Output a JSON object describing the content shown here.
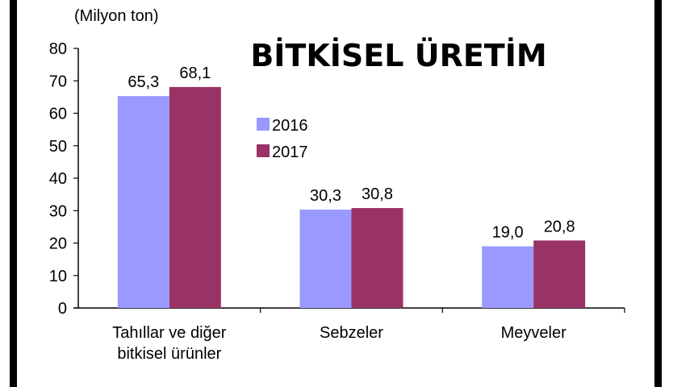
{
  "chart_data": {
    "type": "bar",
    "title": "BİTKİSEL ÜRETİM",
    "ylabel": "(Milyon ton)",
    "categories": [
      [
        "Tahıllar ve diğer",
        "bitkisel ürünler"
      ],
      [
        "Sebzeler"
      ],
      [
        "Meyveler"
      ]
    ],
    "series": [
      {
        "name": "2016",
        "color": "#9999ff",
        "values": [
          65.3,
          30.3,
          19.0
        ],
        "labels": [
          "65,3",
          "30,3",
          "19,0"
        ]
      },
      {
        "name": "2017",
        "color": "#993366",
        "values": [
          68.1,
          30.8,
          20.8
        ],
        "labels": [
          "68,1",
          "30,8",
          "20,8"
        ]
      }
    ],
    "ylim": [
      0,
      80
    ],
    "yticks": [
      0,
      10,
      20,
      30,
      40,
      50,
      60,
      70,
      80
    ],
    "grid": false,
    "legend": "center"
  }
}
